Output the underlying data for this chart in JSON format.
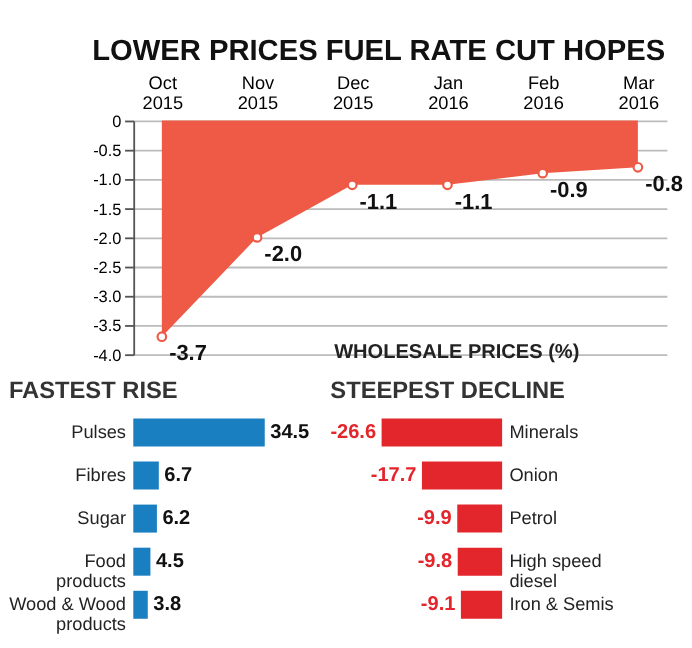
{
  "chart_data": [
    {
      "type": "area",
      "title": "LOWER PRICES FUEL RATE CUT HOPES",
      "categories": [
        "Oct 2015",
        "Nov 2015",
        "Dec 2015",
        "Jan 2016",
        "Feb 2016",
        "Mar 2016"
      ],
      "values": [
        -3.7,
        -2.0,
        -1.1,
        -1.1,
        -0.9,
        -0.8
      ],
      "color": "#ee5a45",
      "ylim": [
        -4,
        0
      ],
      "yticks": [
        {
          "value": 0,
          "label": "0"
        },
        {
          "value": -0.5,
          "label": "-0.5"
        },
        {
          "value": -1,
          "label": "-1.0"
        },
        {
          "value": -1.5,
          "label": "-1.5"
        },
        {
          "value": -2,
          "label": "-2.0"
        },
        {
          "value": -2.5,
          "label": "-2.5"
        },
        {
          "value": -3,
          "label": "-3.0"
        },
        {
          "value": -3.5,
          "label": "-3.5"
        },
        {
          "value": -4,
          "label": "-4.0"
        }
      ],
      "grid": "y",
      "value_labels": [
        "-3.7",
        "-2.0",
        "-1.1",
        "-1.1",
        "-0.9",
        "-0.8"
      ],
      "marker": "circle",
      "annotations": [
        "WHOLESALE PRICES (%)"
      ]
    },
    {
      "type": "bar",
      "orientation": "horizontal",
      "title": "FASTEST RISE",
      "categories": [
        "Pulses",
        "Fibres",
        "Sugar",
        "Food products",
        "Wood & Wood products"
      ],
      "values": [
        34.5,
        6.7,
        6.2,
        4.5,
        3.8
      ],
      "color": "#1a7fc1",
      "data_labels": true
    },
    {
      "type": "bar",
      "orientation": "horizontal",
      "title": "STEEPEST DECLINE",
      "categories": [
        "Minerals",
        "Onion",
        "Petrol",
        "High speed diesel",
        "Iron & Semis"
      ],
      "values": [
        -26.6,
        -17.7,
        -9.9,
        -9.8,
        -9.1
      ],
      "color": "#e3262c",
      "data_labels": true
    }
  ]
}
